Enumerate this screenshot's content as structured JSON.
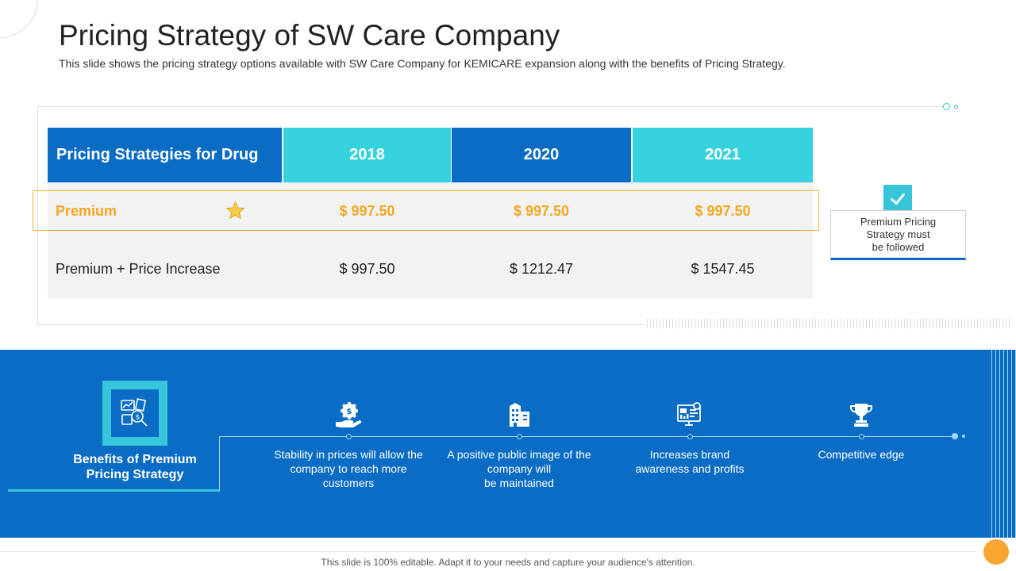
{
  "header": {
    "title": "Pricing Strategy of SW Care Company",
    "subtitle": "This slide shows the pricing strategy options available with SW Care Company for KEMICARE expansion along with the benefits of Pricing Strategy."
  },
  "table": {
    "headers": [
      "Pricing Strategies for Drug",
      "2018",
      "2020",
      "2021"
    ],
    "rows": [
      {
        "label": "Premium",
        "values": [
          "$ 997.50",
          "$ 997.50",
          "$ 997.50"
        ]
      },
      {
        "label": "Premium + Price Increase",
        "values": [
          "$ 997.50",
          "$ 1212.47",
          "$ 1547.45"
        ]
      }
    ]
  },
  "callout": {
    "text": "Premium Pricing Strategy must be followed",
    "lines": [
      "Premium Pricing",
      "Strategy must",
      "be followed"
    ]
  },
  "benefits": {
    "title": "Benefits of Premium Pricing Strategy",
    "title_lines": [
      "Benefits of Premium",
      "Pricing Strategy"
    ],
    "items": [
      {
        "icon": "money-hand-icon",
        "lines": [
          "Stability in prices will allow the",
          "company to reach more",
          "customers"
        ]
      },
      {
        "icon": "building-icon",
        "lines": [
          "A positive public image of the",
          "company will",
          "be maintained"
        ]
      },
      {
        "icon": "monitor-dashboard-icon",
        "lines": [
          "Increases brand",
          "awareness and profits"
        ]
      },
      {
        "icon": "trophy-icon",
        "lines": [
          "Competitive edge"
        ]
      }
    ]
  },
  "footer": {
    "text": "This slide is 100% editable. Adapt it to your needs and capture your audience's attention."
  },
  "colors": {
    "primary_blue": "#0a6cc4",
    "cyan": "#36d3df",
    "accent_orange": "#f5a623"
  }
}
